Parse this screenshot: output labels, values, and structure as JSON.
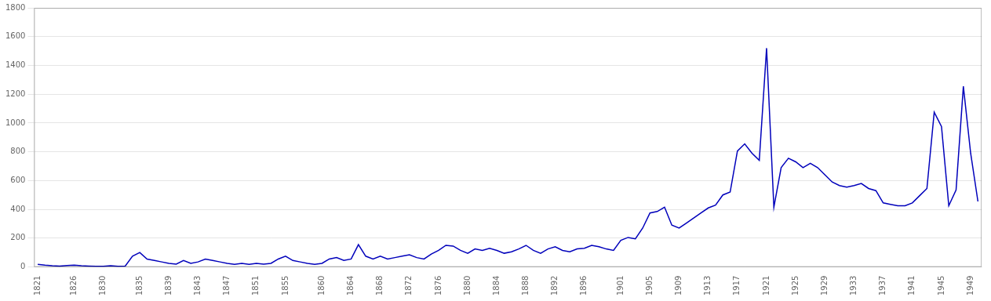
{
  "chart_data": {
    "type": "line",
    "x": [
      1821,
      1822,
      1823,
      1824,
      1825,
      1826,
      1827,
      1828,
      1829,
      1830,
      1831,
      1832,
      1833,
      1834,
      1835,
      1836,
      1837,
      1838,
      1839,
      1840,
      1841,
      1842,
      1843,
      1844,
      1845,
      1846,
      1847,
      1848,
      1849,
      1850,
      1851,
      1852,
      1853,
      1854,
      1855,
      1856,
      1857,
      1858,
      1859,
      1860,
      1861,
      1862,
      1863,
      1864,
      1865,
      1866,
      1867,
      1868,
      1869,
      1870,
      1871,
      1872,
      1873,
      1874,
      1875,
      1876,
      1877,
      1878,
      1879,
      1880,
      1881,
      1882,
      1883,
      1884,
      1885,
      1886,
      1887,
      1888,
      1889,
      1890,
      1891,
      1892,
      1893,
      1894,
      1895,
      1896,
      1897,
      1898,
      1899,
      1900,
      1901,
      1902,
      1903,
      1904,
      1905,
      1906,
      1907,
      1908,
      1909,
      1910,
      1911,
      1912,
      1913,
      1914,
      1915,
      1916,
      1917,
      1918,
      1919,
      1920,
      1921,
      1922,
      1923,
      1924,
      1925,
      1926,
      1927,
      1928,
      1929,
      1930,
      1931,
      1932,
      1933,
      1934,
      1935,
      1936,
      1937,
      1938,
      1939,
      1940,
      1941,
      1942,
      1943,
      1944,
      1945,
      1946,
      1947,
      1948,
      1949,
      1950
    ],
    "values": [
      18,
      12,
      8,
      6,
      10,
      12,
      8,
      6,
      4,
      4,
      8,
      4,
      6,
      75,
      100,
      55,
      45,
      35,
      25,
      20,
      45,
      25,
      35,
      55,
      45,
      35,
      25,
      18,
      25,
      18,
      25,
      20,
      25,
      55,
      75,
      45,
      35,
      25,
      18,
      25,
      55,
      65,
      45,
      55,
      155,
      75,
      55,
      75,
      55,
      65,
      75,
      85,
      65,
      55,
      90,
      115,
      150,
      145,
      115,
      95,
      125,
      115,
      130,
      115,
      95,
      105,
      125,
      150,
      115,
      95,
      125,
      140,
      115,
      105,
      125,
      130,
      150,
      140,
      125,
      115,
      185,
      205,
      195,
      270,
      375,
      385,
      415,
      290,
      270,
      305,
      340,
      375,
      410,
      430,
      500,
      520,
      805,
      855,
      790,
      740,
      1520,
      415,
      690,
      755,
      730,
      690,
      720,
      690,
      640,
      590,
      565,
      555,
      565,
      580,
      545,
      530,
      445,
      435,
      425,
      425,
      445,
      495,
      545,
      1075,
      975,
      425,
      535,
      1255,
      790,
      455
    ],
    "color": "#0000BB",
    "xlim": [
      1820.5,
      1950.5
    ],
    "xticks": [
      1821,
      1826,
      1830,
      1835,
      1839,
      1843,
      1847,
      1851,
      1855,
      1860,
      1864,
      1868,
      1872,
      1876,
      1880,
      1884,
      1888,
      1892,
      1896,
      1901,
      1905,
      1909,
      1913,
      1917,
      1921,
      1925,
      1929,
      1933,
      1937,
      1941,
      1945,
      1949
    ],
    "ylim": [
      0,
      1800
    ],
    "yticks": [
      0,
      200,
      400,
      600,
      800,
      1000,
      1200,
      1400,
      1600,
      1800
    ],
    "grid": "y"
  }
}
